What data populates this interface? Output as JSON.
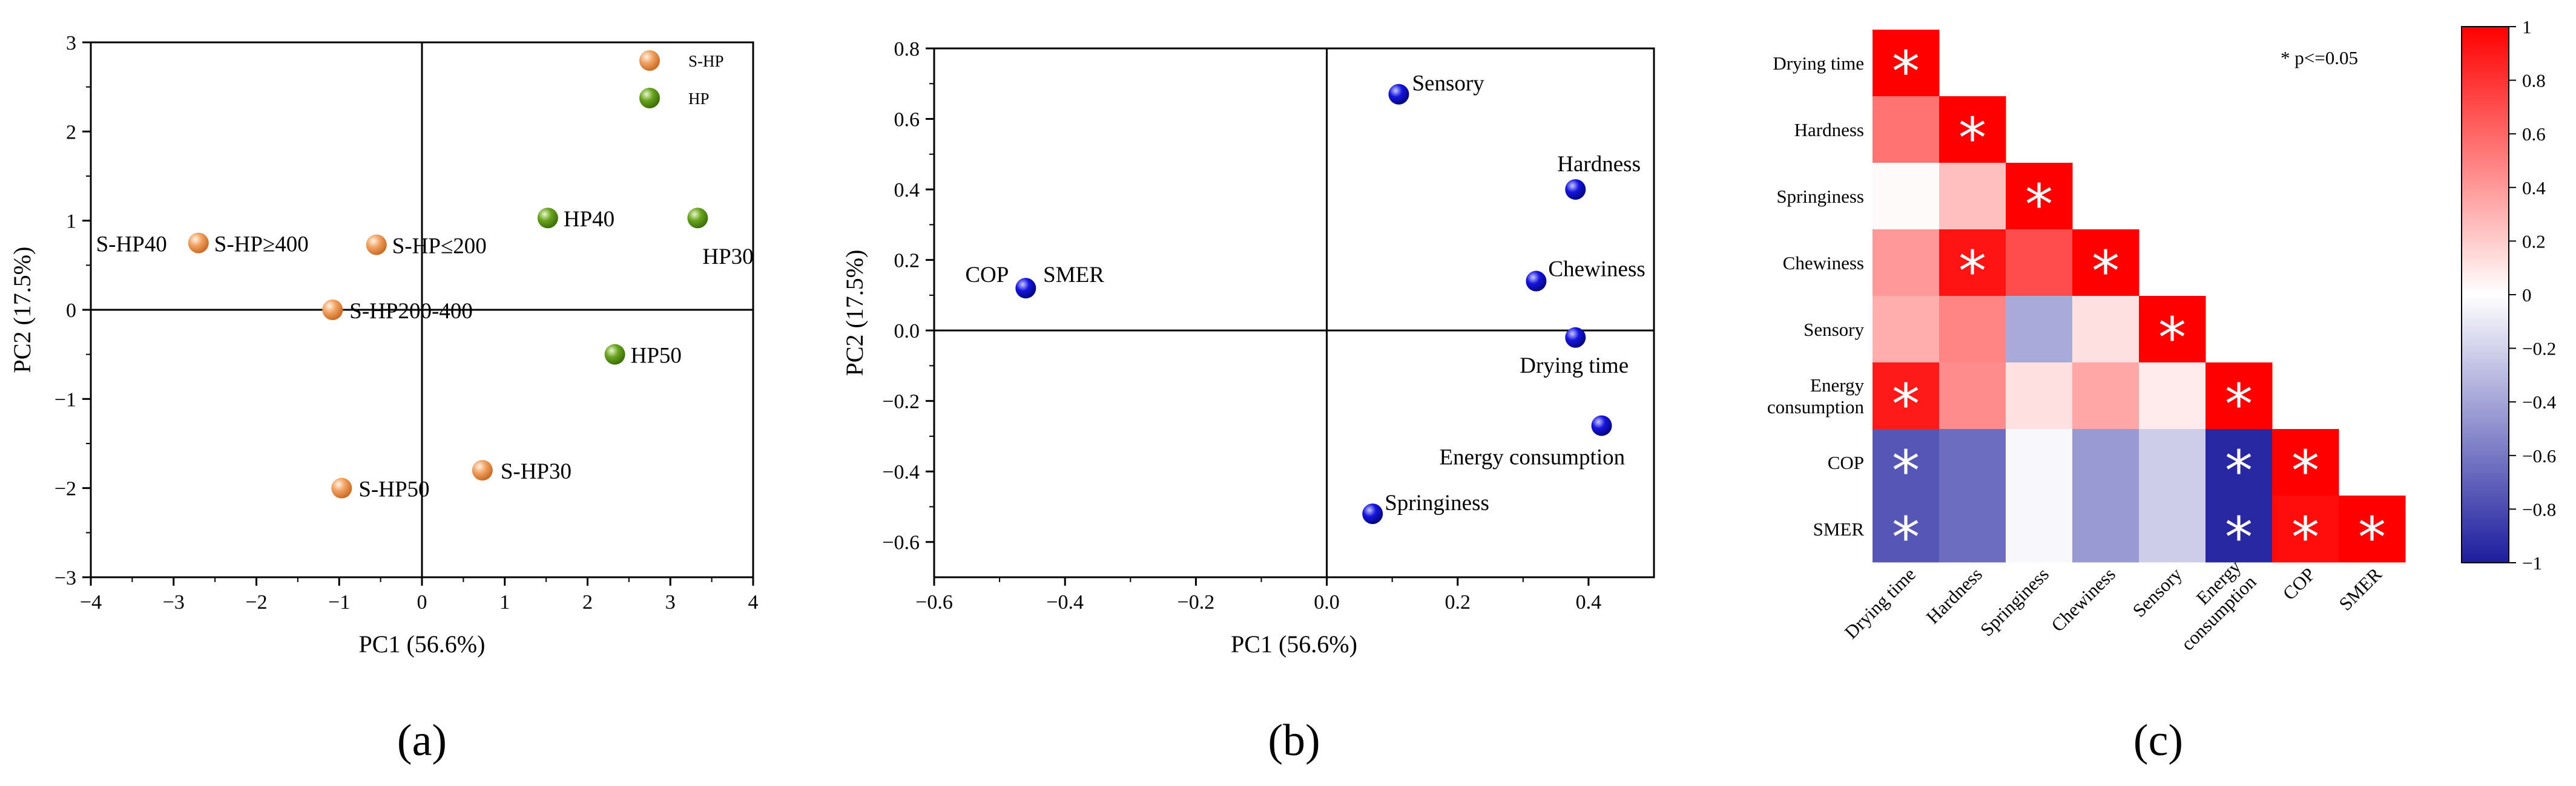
{
  "chart_data": [
    {
      "type": "scatter",
      "panel_label": "(a)",
      "xlabel": "PC1 (56.6%)",
      "ylabel": "PC2 (17.5%)",
      "xlim": [
        -4,
        4
      ],
      "ylim": [
        -3,
        3
      ],
      "xticks": [
        -4,
        -3,
        -2,
        -1,
        0,
        1,
        2,
        3,
        4
      ],
      "yticks": [
        -3,
        -2,
        -1,
        0,
        1,
        2,
        3
      ],
      "legend_position": "top-right",
      "series": [
        {
          "name": "S-HP",
          "color": "#f2a262",
          "points": [
            {
              "label": "S-HP40",
              "x": -2.7,
              "y": 0.75
            },
            {
              "label": "S-HP≥400",
              "x": -2.7,
              "y": 0.75
            },
            {
              "label": "S-HP≤200",
              "x": -0.55,
              "y": 0.73
            },
            {
              "label": "S-HP200-400",
              "x": -1.08,
              "y": 0.0
            },
            {
              "label": "S-HP50",
              "x": -0.97,
              "y": -2.0
            },
            {
              "label": "S-HP30",
              "x": 0.73,
              "y": -1.8
            }
          ]
        },
        {
          "name": "HP",
          "color": "#6aa41f",
          "points": [
            {
              "label": "HP40",
              "x": 1.52,
              "y": 1.03
            },
            {
              "label": "HP30",
              "x": 3.33,
              "y": 1.03
            },
            {
              "label": "HP50",
              "x": 2.33,
              "y": -0.5
            }
          ]
        }
      ]
    },
    {
      "type": "scatter",
      "panel_label": "(b)",
      "xlabel": "PC1 (56.6%)",
      "ylabel": "PC2 (17.5%)",
      "xlim": [
        -0.6,
        0.5
      ],
      "ylim": [
        -0.7,
        0.8
      ],
      "xticks": [
        -0.6,
        -0.4,
        -0.2,
        0.0,
        0.2,
        0.4
      ],
      "yticks": [
        -0.6,
        -0.4,
        -0.2,
        0.0,
        0.2,
        0.4,
        0.6,
        0.8
      ],
      "series": [
        {
          "color": "#1515e0",
          "points": [
            {
              "label": "Sensory",
              "x": 0.11,
              "y": 0.67
            },
            {
              "label": "Hardness",
              "x": 0.38,
              "y": 0.4
            },
            {
              "label": "Chewiness",
              "x": 0.32,
              "y": 0.14
            },
            {
              "label": "Drying time",
              "x": 0.38,
              "y": -0.02
            },
            {
              "label": "Energy consumption",
              "x": 0.42,
              "y": -0.27
            },
            {
              "label": "Springiness",
              "x": 0.07,
              "y": -0.52
            },
            {
              "label": "COP",
              "x": -0.46,
              "y": 0.12
            },
            {
              "label": "SMER",
              "x": -0.45,
              "y": 0.12
            }
          ]
        }
      ]
    },
    {
      "type": "heatmap",
      "panel_label": "(c)",
      "variables": [
        "Drying time",
        "Hardness",
        "Springiness",
        "Chewiness",
        "Sensory",
        "Energy consumption",
        "COP",
        "SMER"
      ],
      "row_labels": [
        [
          "Drying time"
        ],
        [
          "Hardness"
        ],
        [
          "Springiness"
        ],
        [
          "Chewiness"
        ],
        [
          "Sensory"
        ],
        [
          "Energy",
          "consumption"
        ],
        [
          "COP"
        ],
        [
          "SMER"
        ]
      ],
      "col_labels": [
        [
          "Drying time"
        ],
        [
          "Hardness"
        ],
        [
          "Springiness"
        ],
        [
          "Chewiness"
        ],
        [
          "Sensory"
        ],
        [
          "Energy",
          "consumption"
        ],
        [
          "COP"
        ],
        [
          "SMER"
        ]
      ],
      "values": [
        [
          1.0
        ],
        [
          0.55,
          1.0
        ],
        [
          0.02,
          0.25,
          1.0
        ],
        [
          0.4,
          0.92,
          0.7,
          1.0
        ],
        [
          0.32,
          0.48,
          -0.38,
          0.12,
          1.0
        ],
        [
          0.9,
          0.45,
          0.12,
          0.35,
          0.08,
          1.0
        ],
        [
          -0.75,
          -0.65,
          -0.03,
          -0.45,
          -0.22,
          -0.95,
          1.0
        ],
        [
          -0.75,
          -0.65,
          -0.03,
          -0.45,
          -0.22,
          -0.95,
          0.95,
          1.0
        ]
      ],
      "significant": [
        [
          true
        ],
        [
          false,
          true
        ],
        [
          false,
          false,
          true
        ],
        [
          false,
          true,
          false,
          true
        ],
        [
          false,
          false,
          false,
          false,
          true
        ],
        [
          true,
          false,
          false,
          false,
          false,
          true
        ],
        [
          true,
          false,
          false,
          false,
          false,
          true,
          true
        ],
        [
          true,
          false,
          false,
          false,
          false,
          true,
          true,
          true
        ]
      ],
      "significance_note": "* p<=0.05",
      "colorbar": {
        "range": [
          -1,
          1
        ],
        "ticks": [
          1,
          0.8,
          0.6,
          0.4,
          0.2,
          0,
          -0.2,
          -0.4,
          -0.6,
          -0.8,
          -1
        ],
        "tick_labels": [
          "1",
          "0.8",
          "0.6",
          "0.4",
          "0.2",
          "0",
          "−0.2",
          "−0.4",
          "−0.6",
          "−0.8",
          "−1"
        ],
        "colors": {
          "negative": "#1d1d9e",
          "zero": "#ffffff",
          "positive": "#ff0000"
        }
      }
    }
  ]
}
